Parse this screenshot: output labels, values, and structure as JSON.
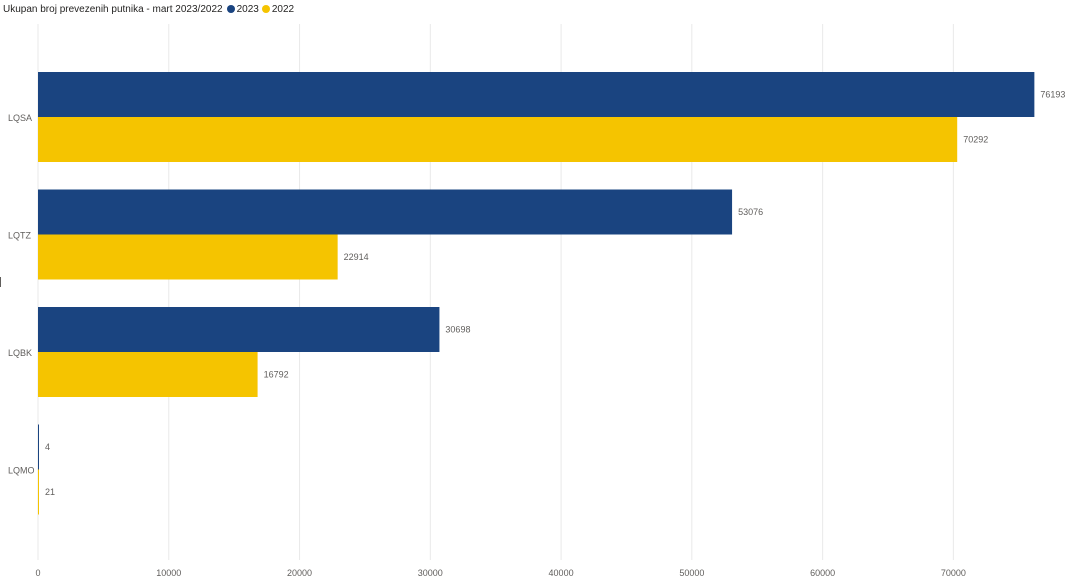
{
  "chart_data": {
    "type": "bar",
    "orientation": "horizontal",
    "title": "Ukupan broj prevezenih putnika - mart 2023/2022",
    "categories": [
      "LQSA",
      "LQTZ",
      "LQBK",
      "LQMO"
    ],
    "series": [
      {
        "name": "2023",
        "color": "#1a4480",
        "values": [
          76193,
          53076,
          30698,
          4
        ]
      },
      {
        "name": "2022",
        "color": "#f5c400",
        "values": [
          70292,
          22914,
          16792,
          21
        ]
      }
    ],
    "xlim": [
      0,
      78000
    ],
    "xticks": [
      0,
      10000,
      20000,
      30000,
      40000,
      50000,
      60000,
      70000
    ],
    "xtick_labels": [
      "0",
      "10000",
      "20000",
      "30000",
      "40000",
      "50000",
      "60000",
      "70000"
    ],
    "grid": true,
    "data_labels": true,
    "legend_position": "top-left",
    "xlabel": "",
    "ylabel": ""
  }
}
